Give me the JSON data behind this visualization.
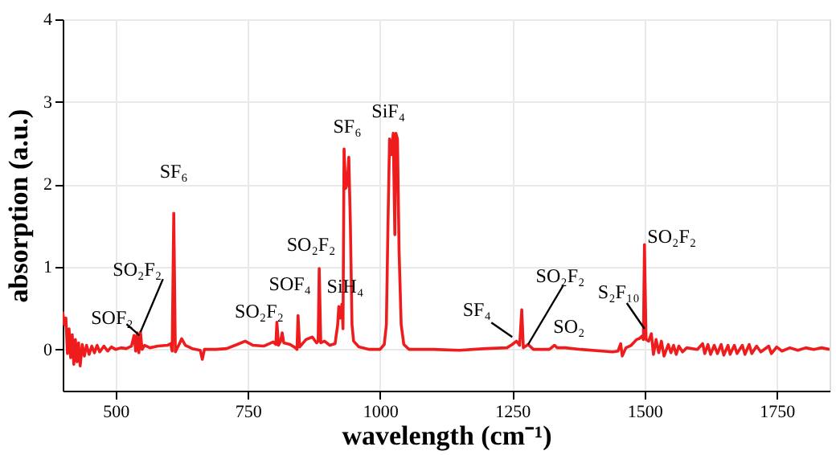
{
  "chart_data": {
    "type": "line",
    "xlabel": "wavelength (cm⁻¹)",
    "ylabel": "absorption (a.u.)",
    "xlim": [
      400,
      1850
    ],
    "xticks": [
      500,
      750,
      1000,
      1250,
      1500,
      1750
    ],
    "ylim": [
      -0.5,
      4
    ],
    "yticks": [
      0,
      1,
      2,
      3,
      4
    ],
    "grid": true,
    "marker": "none",
    "line_style": "solid",
    "series": [
      {
        "color": "#ee1c1c",
        "x": [
          400,
          403,
          406,
          409,
          412,
          415,
          418,
          421,
          424,
          427,
          430,
          433,
          437,
          441,
          445,
          450,
          455,
          460,
          465,
          470,
          478,
          485,
          492,
          500,
          510,
          520,
          530,
          535,
          538,
          541,
          544,
          547,
          550,
          555,
          565,
          580,
          598,
          604,
          607,
          610,
          613,
          620,
          625,
          632,
          645,
          660,
          664,
          668,
          690,
          710,
          730,
          745,
          760,
          780,
          798,
          803,
          805,
          808,
          812,
          815,
          818,
          830,
          840,
          843,
          845,
          848,
          860,
          872,
          880,
          883,
          885,
          888,
          895,
          905,
          915,
          920,
          922,
          925,
          928,
          930,
          932,
          935,
          938,
          941,
          944,
          947,
          950,
          960,
          980,
          1000,
          1008,
          1012,
          1015,
          1018,
          1021,
          1025,
          1028,
          1030,
          1033,
          1036,
          1040,
          1045,
          1055,
          1100,
          1150,
          1200,
          1240,
          1250,
          1258,
          1264,
          1268,
          1271,
          1280,
          1290,
          1320,
          1330,
          1335,
          1350,
          1380,
          1420,
          1440,
          1450,
          1455,
          1458,
          1465,
          1475,
          1485,
          1490,
          1495,
          1498,
          1500,
          1503,
          1508,
          1513,
          1517,
          1522,
          1527,
          1532,
          1537,
          1545,
          1550,
          1555,
          1560,
          1565,
          1572,
          1580,
          1600,
          1610,
          1614,
          1620,
          1625,
          1632,
          1638,
          1645,
          1650,
          1658,
          1662,
          1670,
          1675,
          1685,
          1690,
          1698,
          1703,
          1712,
          1720,
          1735,
          1740,
          1750,
          1760,
          1775,
          1790,
          1805,
          1820,
          1835,
          1850
        ],
        "values": [
          0.46,
          0.3,
          0.38,
          -0.05,
          0.25,
          -0.1,
          0.18,
          -0.18,
          0.12,
          -0.15,
          0.08,
          -0.2,
          0.06,
          -0.08,
          0.05,
          -0.06,
          0.04,
          -0.04,
          0.05,
          -0.03,
          0.04,
          -0.02,
          0.03,
          0.0,
          0.02,
          0.01,
          0.04,
          0.17,
          -0.02,
          0.2,
          -0.04,
          0.21,
          0.0,
          0.05,
          0.02,
          0.04,
          0.05,
          0.07,
          -0.02,
          1.65,
          -0.03,
          0.06,
          0.13,
          0.05,
          0.01,
          -0.01,
          -0.12,
          0.0,
          0.0,
          0.01,
          0.06,
          0.1,
          0.05,
          0.04,
          0.09,
          0.06,
          0.33,
          0.05,
          0.1,
          0.2,
          0.08,
          0.06,
          0.02,
          0.0,
          0.41,
          0.03,
          0.12,
          0.15,
          0.08,
          0.1,
          0.98,
          0.08,
          0.1,
          0.05,
          0.07,
          0.3,
          0.52,
          0.38,
          0.55,
          0.25,
          2.43,
          1.95,
          2.0,
          2.33,
          1.5,
          0.3,
          0.1,
          0.03,
          0.0,
          0.0,
          0.06,
          0.3,
          1.5,
          2.55,
          2.36,
          2.62,
          1.39,
          2.62,
          2.55,
          1.2,
          0.3,
          0.06,
          0.0,
          0.0,
          -0.01,
          0.01,
          0.02,
          0.06,
          0.1,
          0.05,
          0.48,
          0.02,
          0.06,
          0.0,
          0.0,
          0.05,
          0.02,
          0.02,
          0.0,
          -0.02,
          -0.03,
          -0.02,
          0.07,
          -0.08,
          0.02,
          0.05,
          0.12,
          0.13,
          0.16,
          0.12,
          1.27,
          0.12,
          0.1,
          0.19,
          -0.06,
          0.12,
          -0.04,
          0.1,
          -0.08,
          0.06,
          -0.04,
          0.05,
          -0.06,
          0.04,
          -0.03,
          0.02,
          0.0,
          0.07,
          -0.05,
          0.06,
          -0.06,
          0.05,
          -0.05,
          0.06,
          -0.07,
          0.05,
          -0.06,
          0.05,
          -0.05,
          0.05,
          -0.06,
          0.06,
          -0.05,
          0.04,
          -0.03,
          0.04,
          -0.05,
          0.03,
          -0.02,
          0.02,
          -0.01,
          0.02,
          0.0,
          0.02,
          0.0
        ]
      }
    ],
    "annotations": [
      {
        "text": "SOF₂",
        "x": 545,
        "y": 0.17
      },
      {
        "text": "SO₂F₂",
        "x": 547,
        "y": 0.21
      },
      {
        "text": "SF₆",
        "x": 610,
        "y": 1.65
      },
      {
        "text": "SO₂F₂",
        "x": 805,
        "y": 0.33
      },
      {
        "text": "SOF₄",
        "x": 845,
        "y": 0.41
      },
      {
        "text": "SO₂F₂",
        "x": 885,
        "y": 0.98
      },
      {
        "text": "SiH₄",
        "x": 925,
        "y": 0.55
      },
      {
        "text": "SF₆",
        "x": 932,
        "y": 2.43
      },
      {
        "text": "SiF₄",
        "x": 1025,
        "y": 2.62
      },
      {
        "text": "SF₄",
        "x": 1250,
        "y": 0.15
      },
      {
        "text": "SO₂F₂",
        "x": 1280,
        "y": 0.06
      },
      {
        "text": "SO₂",
        "x": 1330,
        "y": 0.05
      },
      {
        "text": "S₂F₁₀",
        "x": 1500,
        "y": 0.25
      },
      {
        "text": "SO₂F₂",
        "x": 1500,
        "y": 1.27
      }
    ]
  }
}
